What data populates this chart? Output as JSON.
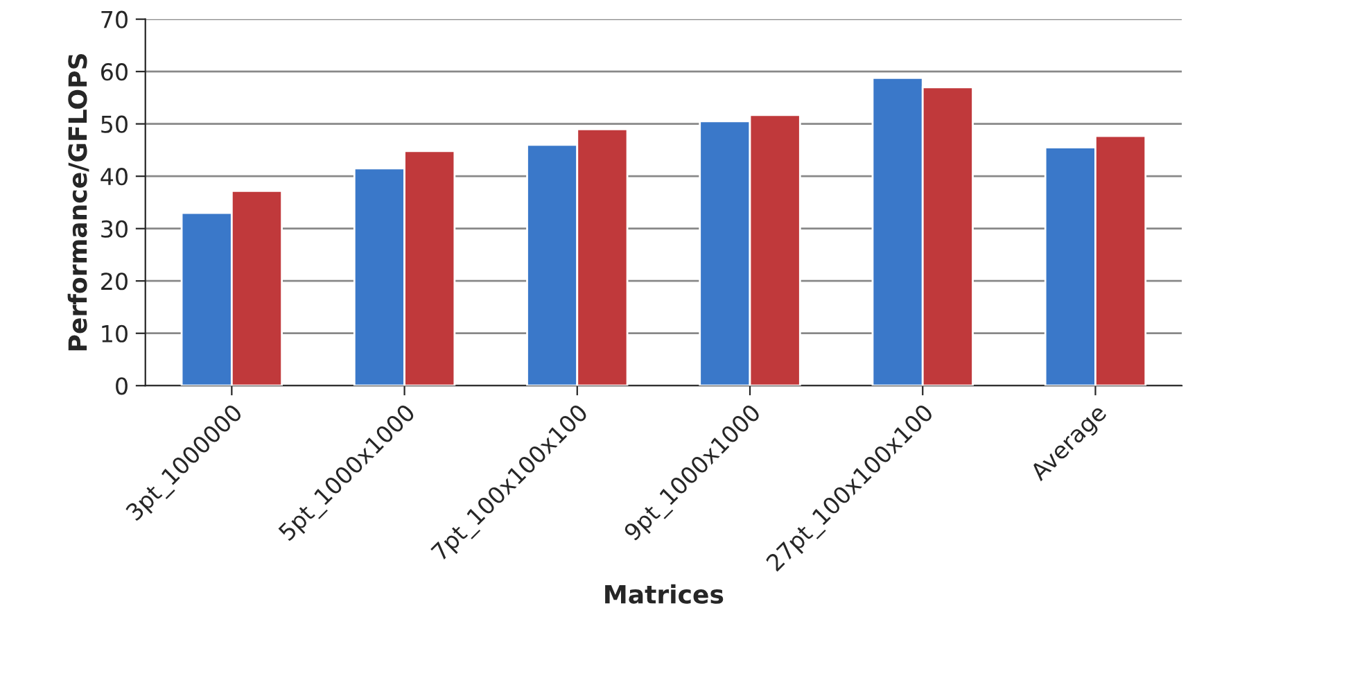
{
  "chart_data": {
    "type": "bar",
    "xlabel": "Matrices",
    "ylabel": "Performance/GFLOPS",
    "categories": [
      "3pt_1000000",
      "5pt_1000x1000",
      "7pt_100x100x100",
      "9pt_1000x1000",
      "27pt_100x100x100",
      "Average"
    ],
    "series": [
      {
        "color": "#3a78c9",
        "values": [
          33,
          41.5,
          46,
          50.5,
          58.8,
          45.5
        ]
      },
      {
        "color": "#c0393b",
        "values": [
          37.2,
          44.8,
          49,
          51.7,
          57,
          47.7
        ]
      }
    ],
    "ylim": [
      0,
      70
    ],
    "yticks": [
      0,
      10,
      20,
      30,
      40,
      50,
      60,
      70
    ],
    "grid": "y"
  }
}
